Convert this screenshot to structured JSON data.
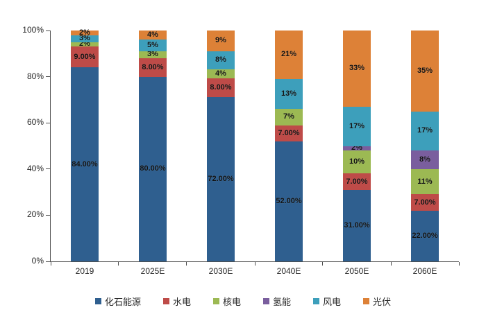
{
  "chart_data": {
    "type": "bar",
    "stacked": true,
    "percent_stacked": true,
    "title": "",
    "categories": [
      "2019",
      "2025E",
      "2030E",
      "2040E",
      "2050E",
      "2060E"
    ],
    "series": [
      {
        "id": "fossil-energy",
        "name": "化石能源",
        "color": "#2F5F8F",
        "values": [
          84,
          80,
          72,
          52,
          31,
          22
        ],
        "labels": [
          "84.00%",
          "80.00%",
          "72.00%",
          "52.00%",
          "31.00%",
          "22.00%"
        ]
      },
      {
        "id": "hydro-power",
        "name": "水电",
        "color": "#BE4B48",
        "values": [
          9,
          8,
          8,
          7,
          7,
          7
        ],
        "labels": [
          "9.00%",
          "8.00%",
          "8.00%",
          "7.00%",
          "7.00%",
          "7.00%"
        ]
      },
      {
        "id": "nuclear-power",
        "name": "核电",
        "color": "#9CB953",
        "values": [
          2,
          3,
          4,
          7,
          10,
          11
        ],
        "labels": [
          "2%",
          "3%",
          "4%",
          "7%",
          "10%",
          "11%"
        ]
      },
      {
        "id": "hydrogen-energy",
        "name": "氢能",
        "color": "#7A5E9E",
        "values": [
          0,
          0,
          0,
          0,
          2,
          8
        ],
        "labels": [
          "",
          "",
          "",
          "",
          "2%",
          "8%"
        ]
      },
      {
        "id": "wind-power",
        "name": "风电",
        "color": "#3D9FBB",
        "values": [
          3,
          5,
          8,
          13,
          17,
          17
        ],
        "labels": [
          "3%",
          "5%",
          "8%",
          "13%",
          "17%",
          "17%"
        ]
      },
      {
        "id": "solar-pv",
        "name": "光伏",
        "color": "#DD8137",
        "values": [
          2,
          4,
          9,
          21,
          33,
          35
        ],
        "labels": [
          "2%",
          "4%",
          "9%",
          "21%",
          "33%",
          "35%"
        ]
      }
    ],
    "y_axis": {
      "min": 0,
      "max": 100,
      "ticks": [
        "0%",
        "20%",
        "40%",
        "60%",
        "80%",
        "100%"
      ]
    },
    "xlabel": "",
    "ylabel": "",
    "grid": false,
    "legend_position": "bottom",
    "axis_color": "#4d4d4d"
  }
}
